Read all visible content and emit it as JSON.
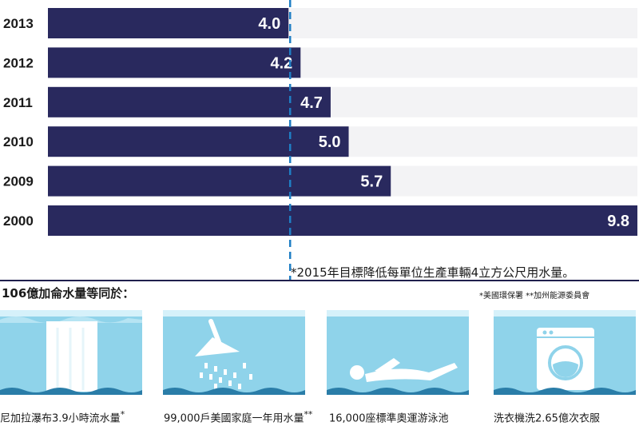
{
  "chart_data": {
    "type": "bar",
    "orientation": "horizontal",
    "categories": [
      "2013",
      "2012",
      "2011",
      "2010",
      "2009",
      "2000"
    ],
    "values": [
      4.0,
      4.2,
      4.7,
      5.0,
      5.7,
      9.8
    ],
    "value_labels": [
      "4.0",
      "4.2",
      "4.7",
      "5.0",
      "5.7",
      "9.8"
    ],
    "xlim": [
      0,
      9.8
    ],
    "target_value": 4.0,
    "target_note": "*2015年目標降低每單位生產車輛4立方公尺用水量。",
    "bar_color": "#29295e",
    "track_color": "#f3f3f5",
    "target_line_color": "#1f7ec4",
    "grid": false
  },
  "equivalence": {
    "title": "106億加侖水量等同於：",
    "sources": "*美國環保署 **加州能源委員會",
    "items": [
      {
        "icon": "waterfall-icon",
        "caption": "尼加拉瀑布3.9小時流水量",
        "mark": "*"
      },
      {
        "icon": "shower-icon",
        "caption": "99,000戶美國家庭一年用水量",
        "mark": "**"
      },
      {
        "icon": "swimmer-icon",
        "caption": "16,000座標準奧運游泳池",
        "mark": ""
      },
      {
        "icon": "washing-machine-icon",
        "caption": "洗衣機洗2.65億次衣服",
        "mark": ""
      }
    ],
    "water_color": "#8fd3ea",
    "water_light": "#d6f1fa"
  }
}
